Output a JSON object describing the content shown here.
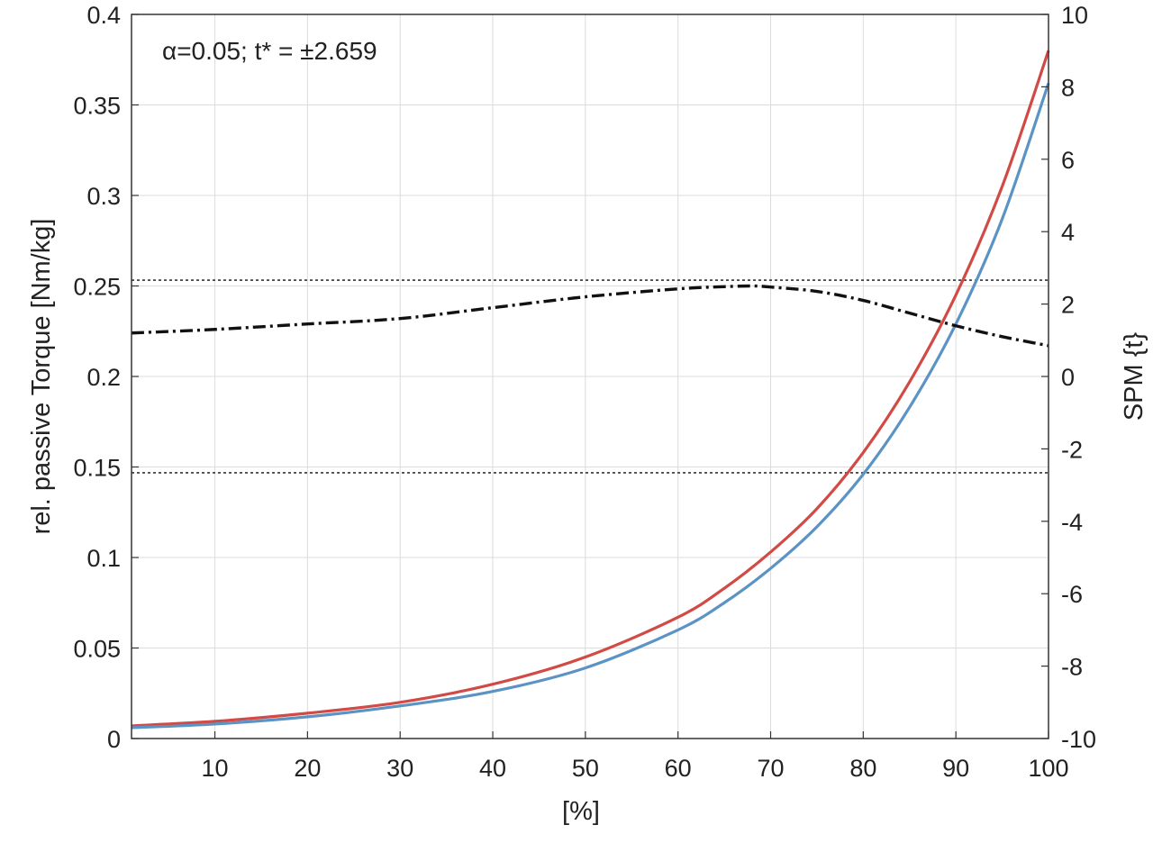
{
  "chart_data": {
    "type": "line",
    "xlabel": "[%]",
    "ylabel_left": "rel. passive Torque [Nm/kg]",
    "ylabel_right": "SPM {t}",
    "annotation": "α=0.05; t* = ±2.659",
    "xlim": [
      1,
      100
    ],
    "ylim_left": [
      0,
      0.4
    ],
    "ylim_right": [
      -10,
      10
    ],
    "x_ticks": [
      10,
      20,
      30,
      40,
      50,
      60,
      70,
      80,
      90,
      100
    ],
    "y_left_ticks": [
      "0",
      "0.05",
      "0.1",
      "0.15",
      "0.2",
      "0.25",
      "0.3",
      "0.35",
      "0.4"
    ],
    "y_right_ticks": [
      "-10",
      "-8",
      "-6",
      "-4",
      "-2",
      "0",
      "2",
      "4",
      "6",
      "8",
      "10"
    ],
    "grid": true,
    "colors": {
      "red": "#d24a45",
      "blue": "#5b93c4",
      "spm": "#111111",
      "threshold": "#333333"
    },
    "series": [
      {
        "axis": "left",
        "color": "#d24a45",
        "x": [
          1,
          10,
          20,
          30,
          40,
          50,
          60,
          65,
          70,
          75,
          80,
          85,
          90,
          95,
          100
        ],
        "y": [
          0.007,
          0.0095,
          0.014,
          0.02,
          0.03,
          0.045,
          0.067,
          0.083,
          0.103,
          0.127,
          0.158,
          0.197,
          0.245,
          0.305,
          0.38
        ]
      },
      {
        "axis": "left",
        "color": "#5b93c4",
        "x": [
          1,
          10,
          20,
          30,
          40,
          50,
          60,
          65,
          70,
          75,
          80,
          85,
          90,
          95,
          100
        ],
        "y": [
          0.006,
          0.008,
          0.012,
          0.018,
          0.026,
          0.039,
          0.06,
          0.075,
          0.094,
          0.117,
          0.146,
          0.183,
          0.229,
          0.287,
          0.362
        ]
      },
      {
        "axis": "right",
        "color": "#111111",
        "style": "dashdot",
        "x": [
          1,
          10,
          20,
          30,
          40,
          50,
          60,
          65,
          68,
          70,
          75,
          80,
          85,
          90,
          95,
          100
        ],
        "y": [
          1.2,
          1.3,
          1.45,
          1.6,
          1.9,
          2.2,
          2.42,
          2.48,
          2.5,
          2.47,
          2.35,
          2.1,
          1.75,
          1.4,
          1.1,
          0.85
        ]
      }
    ],
    "thresholds": [
      2.659,
      -2.659
    ]
  }
}
